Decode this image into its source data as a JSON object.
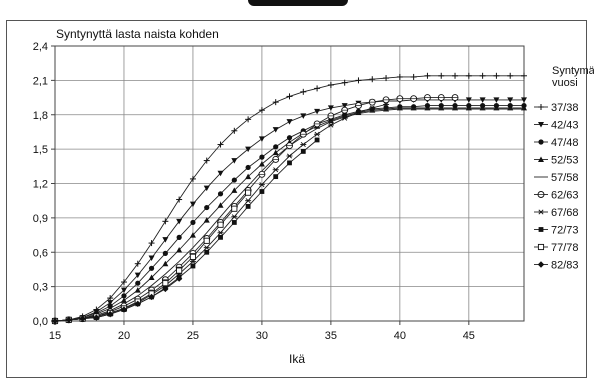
{
  "chart_data": {
    "type": "line",
    "title": "",
    "ylabel": "Syntynyttä lasta naista kohden",
    "xlabel": "Ikä",
    "xlim": [
      15,
      49
    ],
    "ylim": [
      0,
      2.4
    ],
    "xticks": [
      15,
      20,
      25,
      30,
      35,
      40,
      45
    ],
    "yticks": [
      "0,0",
      "0,3",
      "0,6",
      "0,9",
      "1,2",
      "1,5",
      "1,8",
      "2,1",
      "2,4"
    ],
    "grid": true,
    "legend_title": "Syntymä-\nvuosi",
    "legend_title_lines": [
      "Syntymä-",
      "vuosi"
    ],
    "legend_position": "right",
    "series": [
      {
        "name": "37/38",
        "marker": "plus",
        "x": [
          15,
          16,
          17,
          18,
          19,
          20,
          21,
          22,
          23,
          24,
          25,
          26,
          27,
          28,
          29,
          30,
          31,
          32,
          33,
          34,
          35,
          36,
          37,
          38,
          39,
          40,
          41,
          42,
          43,
          44,
          45,
          46,
          47,
          48,
          49
        ],
        "values": [
          0,
          0.01,
          0.04,
          0.1,
          0.2,
          0.34,
          0.5,
          0.68,
          0.87,
          1.06,
          1.24,
          1.4,
          1.54,
          1.66,
          1.76,
          1.84,
          1.91,
          1.96,
          2.0,
          2.03,
          2.06,
          2.08,
          2.1,
          2.11,
          2.12,
          2.13,
          2.13,
          2.14,
          2.14,
          2.14,
          2.14,
          2.14,
          2.14,
          2.14,
          2.14
        ]
      },
      {
        "name": "42/43",
        "marker": "triangle-down",
        "x": [
          15,
          16,
          17,
          18,
          19,
          20,
          21,
          22,
          23,
          24,
          25,
          26,
          27,
          28,
          29,
          30,
          31,
          32,
          33,
          34,
          35,
          36,
          37,
          38,
          39,
          40,
          41,
          42,
          43,
          44,
          45,
          46,
          47,
          48,
          49
        ],
        "values": [
          0,
          0.01,
          0.03,
          0.08,
          0.16,
          0.27,
          0.4,
          0.55,
          0.71,
          0.87,
          1.02,
          1.16,
          1.29,
          1.4,
          1.5,
          1.59,
          1.67,
          1.74,
          1.79,
          1.83,
          1.86,
          1.88,
          1.9,
          1.91,
          1.92,
          1.92,
          1.93,
          1.93,
          1.93,
          1.93,
          1.93,
          1.93,
          1.93,
          1.93,
          1.93
        ]
      },
      {
        "name": "47/48",
        "marker": "circle",
        "x": [
          15,
          16,
          17,
          18,
          19,
          20,
          21,
          22,
          23,
          24,
          25,
          26,
          27,
          28,
          29,
          30,
          31,
          32,
          33,
          34,
          35,
          36,
          37,
          38,
          39,
          40,
          41,
          42,
          43,
          44,
          45,
          46,
          47,
          48,
          49
        ],
        "values": [
          0,
          0.01,
          0.03,
          0.07,
          0.13,
          0.22,
          0.33,
          0.46,
          0.59,
          0.73,
          0.86,
          0.99,
          1.11,
          1.23,
          1.34,
          1.43,
          1.52,
          1.6,
          1.66,
          1.72,
          1.76,
          1.8,
          1.83,
          1.85,
          1.86,
          1.87,
          1.87,
          1.88,
          1.88,
          1.88,
          1.88,
          1.88,
          1.88,
          1.88,
          1.88
        ]
      },
      {
        "name": "52/53",
        "marker": "triangle-up",
        "x": [
          15,
          16,
          17,
          18,
          19,
          20,
          21,
          22,
          23,
          24,
          25,
          26,
          27,
          28,
          29,
          30,
          31,
          32,
          33,
          34,
          35,
          36,
          37,
          38,
          39,
          40,
          41,
          42,
          43,
          44,
          45,
          46,
          47,
          48,
          49
        ],
        "values": [
          0,
          0.01,
          0.02,
          0.06,
          0.11,
          0.18,
          0.27,
          0.38,
          0.5,
          0.62,
          0.75,
          0.88,
          1.01,
          1.14,
          1.26,
          1.37,
          1.47,
          1.56,
          1.64,
          1.7,
          1.75,
          1.79,
          1.82,
          1.84,
          1.85,
          1.86,
          1.86,
          1.86,
          1.86,
          1.86,
          1.86,
          1.86,
          1.86,
          1.86,
          1.86
        ]
      },
      {
        "name": "57/58",
        "marker": "none",
        "x": [
          15,
          16,
          17,
          18,
          19,
          20,
          21,
          22,
          23,
          24,
          25,
          26,
          27,
          28,
          29,
          30,
          31,
          32,
          33,
          34,
          35,
          36,
          37,
          38,
          39,
          40,
          41,
          42,
          43,
          44,
          45,
          46,
          47,
          48,
          49
        ],
        "values": [
          0,
          0.01,
          0.02,
          0.05,
          0.09,
          0.15,
          0.22,
          0.31,
          0.41,
          0.52,
          0.64,
          0.77,
          0.91,
          1.05,
          1.18,
          1.31,
          1.43,
          1.53,
          1.61,
          1.68,
          1.74,
          1.78,
          1.81,
          1.83,
          1.84,
          1.85,
          1.85,
          1.85,
          1.85,
          1.85,
          1.85,
          1.85,
          1.85,
          1.85,
          1.85
        ]
      },
      {
        "name": "62/63",
        "marker": "circle-open-cross",
        "x": [
          15,
          16,
          17,
          18,
          19,
          20,
          21,
          22,
          23,
          24,
          25,
          26,
          27,
          28,
          29,
          30,
          31,
          32,
          33,
          34,
          35,
          36,
          37,
          38,
          39,
          40,
          41,
          42,
          43,
          44
        ],
        "values": [
          0,
          0.01,
          0.02,
          0.04,
          0.08,
          0.13,
          0.19,
          0.27,
          0.36,
          0.47,
          0.59,
          0.72,
          0.86,
          1.0,
          1.14,
          1.28,
          1.41,
          1.53,
          1.63,
          1.72,
          1.79,
          1.84,
          1.88,
          1.91,
          1.93,
          1.94,
          1.94,
          1.95,
          1.95,
          1.95
        ]
      },
      {
        "name": "67/68",
        "marker": "star",
        "x": [
          15,
          16,
          17,
          18,
          19,
          20,
          21,
          22,
          23,
          24,
          25,
          26,
          27,
          28,
          29,
          30,
          31,
          32,
          33,
          34,
          35,
          36,
          37,
          38,
          39
        ],
        "values": [
          0,
          0.01,
          0.02,
          0.04,
          0.07,
          0.11,
          0.16,
          0.23,
          0.31,
          0.41,
          0.52,
          0.64,
          0.77,
          0.91,
          1.05,
          1.19,
          1.32,
          1.44,
          1.54,
          1.63,
          1.71,
          1.77,
          1.82,
          1.86,
          1.89
        ]
      },
      {
        "name": "72/73",
        "marker": "square",
        "x": [
          15,
          16,
          17,
          18,
          19,
          20,
          21,
          22,
          23,
          24,
          25,
          26,
          27,
          28,
          29,
          30,
          31,
          32,
          33,
          34
        ],
        "values": [
          0,
          0.01,
          0.02,
          0.03,
          0.06,
          0.1,
          0.15,
          0.21,
          0.29,
          0.38,
          0.48,
          0.6,
          0.73,
          0.86,
          1.0,
          1.13,
          1.26,
          1.38,
          1.48,
          1.58
        ]
      },
      {
        "name": "77/78",
        "marker": "square-open",
        "x": [
          15,
          16,
          17,
          18,
          19,
          20,
          21,
          22,
          23,
          24,
          25,
          26,
          27,
          28,
          29
        ],
        "values": [
          0,
          0.01,
          0.02,
          0.04,
          0.07,
          0.11,
          0.17,
          0.24,
          0.33,
          0.44,
          0.56,
          0.7,
          0.84,
          0.98,
          1.12
        ]
      },
      {
        "name": "82/83",
        "marker": "diamond",
        "x": [
          15,
          16,
          17,
          18,
          19,
          20,
          21,
          22,
          23,
          24
        ],
        "values": [
          0,
          0.01,
          0.02,
          0.03,
          0.06,
          0.1,
          0.15,
          0.21,
          0.28,
          0.37
        ]
      }
    ]
  }
}
